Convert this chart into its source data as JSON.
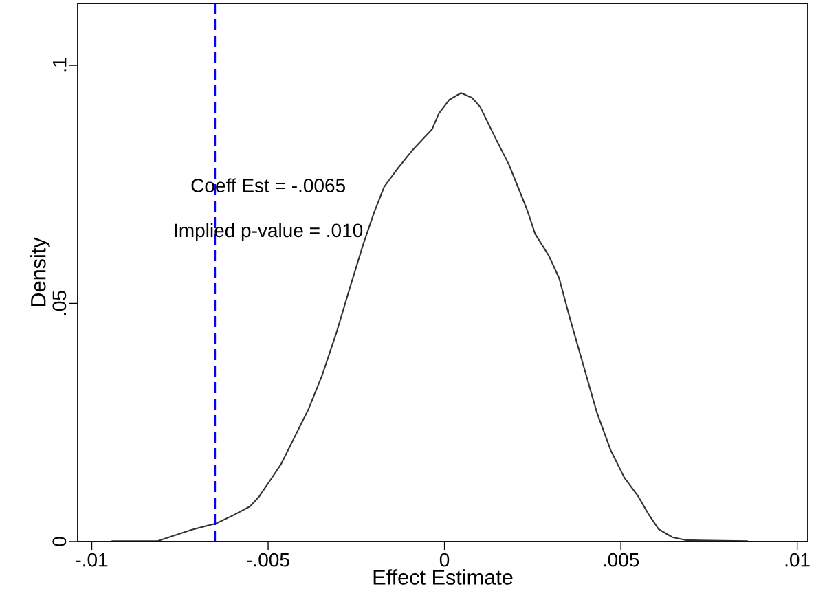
{
  "chart_data": {
    "type": "line",
    "xlabel": "Effect Estimate",
    "ylabel": "Density",
    "xlim": [
      -0.0104,
      0.0103
    ],
    "ylim": [
      0,
      0.113
    ],
    "xticks": [
      {
        "value": -0.01,
        "label": "-.01"
      },
      {
        "value": -0.005,
        "label": "-.005"
      },
      {
        "value": 0,
        "label": "0"
      },
      {
        "value": 0.005,
        "label": ".005"
      },
      {
        "value": 0.01,
        "label": ".01"
      }
    ],
    "yticks": [
      {
        "value": 0,
        "label": "0"
      },
      {
        "value": 0.05,
        "label": ".05"
      },
      {
        "value": 0.1,
        "label": ".1"
      }
    ],
    "series": [
      {
        "color": "#333333",
        "x": [
          -0.00944,
          -0.00813,
          -0.00765,
          -0.00716,
          -0.00648,
          -0.00599,
          -0.00551,
          -0.00525,
          -0.00492,
          -0.00463,
          -0.00424,
          -0.00385,
          -0.00346,
          -0.00307,
          -0.00269,
          -0.0023,
          -0.002,
          -0.00171,
          -0.00132,
          -0.00093,
          -0.00054,
          -0.00035,
          -0.00016,
          0.00014,
          0.00047,
          0.00078,
          0.00101,
          0.00144,
          0.00183,
          0.00208,
          0.00234,
          0.00257,
          0.00296,
          0.00325,
          0.00354,
          0.00393,
          0.00432,
          0.00471,
          0.0051,
          0.00549,
          0.00578,
          0.00607,
          0.00646,
          0.00685,
          0.0086
        ],
        "values": [
          0.0001,
          0.0001,
          0.0013,
          0.0025,
          0.0038,
          0.0055,
          0.0074,
          0.0095,
          0.0131,
          0.0163,
          0.0221,
          0.0279,
          0.0351,
          0.0437,
          0.0531,
          0.0625,
          0.069,
          0.0745,
          0.0784,
          0.082,
          0.0851,
          0.0866,
          0.0899,
          0.0928,
          0.0942,
          0.0932,
          0.0913,
          0.0848,
          0.0791,
          0.0745,
          0.0697,
          0.0646,
          0.06,
          0.0553,
          0.0473,
          0.0372,
          0.0271,
          0.0192,
          0.0134,
          0.0095,
          0.0058,
          0.0026,
          0.0009,
          0.0003,
          0.0001
        ]
      }
    ],
    "ref_lines": [
      {
        "axis": "x",
        "value": -0.0065,
        "color": "#0000ff",
        "line_style": "dashed"
      }
    ],
    "annotations": [
      "Coeff Est = -.0065",
      "Implied p-value = .010"
    ]
  }
}
